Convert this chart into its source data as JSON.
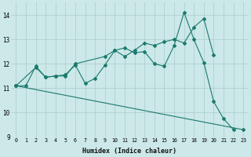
{
  "xlabel": "Humidex (Indice chaleur)",
  "bg_color": "#cce8e8",
  "line_color": "#1a7a6e",
  "grid_color": "#aacccc",
  "xlim": [
    -0.5,
    23.5
  ],
  "ylim": [
    9,
    14.5
  ],
  "yticks": [
    9,
    10,
    11,
    12,
    13,
    14
  ],
  "xticks": [
    0,
    1,
    2,
    3,
    4,
    5,
    6,
    7,
    8,
    9,
    10,
    11,
    12,
    13,
    14,
    15,
    16,
    17,
    18,
    19,
    20,
    21,
    22,
    23
  ],
  "line1_x": [
    0,
    1,
    2,
    3,
    4,
    5,
    6,
    7,
    8,
    9,
    10,
    11,
    12,
    13,
    14,
    15,
    16,
    17,
    18,
    19,
    20,
    21,
    22
  ],
  "line1_y": [
    11.1,
    11.1,
    11.9,
    11.45,
    11.5,
    11.55,
    11.95,
    11.2,
    11.4,
    11.95,
    12.55,
    12.65,
    12.45,
    12.5,
    12.0,
    11.9,
    12.75,
    14.1,
    13.0,
    12.05,
    10.45,
    9.75,
    9.3
  ],
  "line2_x": [
    0,
    2,
    3,
    4,
    5,
    6,
    9,
    10,
    11,
    12,
    13,
    14,
    15,
    16,
    17,
    18,
    19,
    20
  ],
  "line2_y": [
    11.1,
    11.85,
    11.45,
    11.5,
    11.5,
    12.0,
    12.3,
    12.55,
    12.3,
    12.55,
    12.85,
    12.75,
    12.9,
    13.0,
    12.85,
    13.5,
    13.85,
    12.35
  ],
  "line3_x": [
    0,
    23
  ],
  "line3_y": [
    11.1,
    9.3
  ]
}
